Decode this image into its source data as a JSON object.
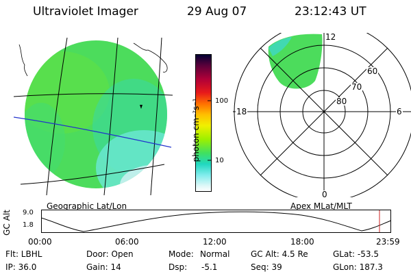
{
  "header": {
    "title": "Ultraviolet Imager",
    "date": "29 Aug 07",
    "time": "23:12:43 UT"
  },
  "colorbar": {
    "unit_label": "photon cm⁻²s⁻¹",
    "ticks": [
      "100",
      "10"
    ],
    "colors": [
      "#000033",
      "#5a003a",
      "#9a0038",
      "#d0002a",
      "#f03010",
      "#ff8000",
      "#ffc000",
      "#f0f000",
      "#a8f000",
      "#40e060",
      "#20d8c0",
      "#60e8e8",
      "#d0f4f4",
      "#ffffff"
    ]
  },
  "geo_panel": {
    "label": "Geographic Lat/Lon"
  },
  "polar_panel": {
    "label": "Apex MLat/MLT",
    "mlt_labels": {
      "top": "12",
      "left": "18",
      "right": "6",
      "bottom": "0"
    },
    "lat_labels": [
      "60",
      "70",
      "80"
    ]
  },
  "altitude_plot": {
    "ylabel": "GC Alt",
    "ymax": "9.0",
    "ymin": "1.8",
    "x_ticks": [
      "00:00",
      "06:00",
      "12:00",
      "18:00",
      "23:59"
    ],
    "marker_color": "#cc2222"
  },
  "footer": {
    "row1": {
      "flt": "Flt: LBHL",
      "door": "Door: Open",
      "mode_label": "Mode:",
      "mode_value": "Normal",
      "gcalt": "GC Alt: 4.5 Re",
      "glat": "GLat: -53.5"
    },
    "row2": {
      "ip": "IP: 36.0",
      "gain": "Gain: 14",
      "dsp_label": "Dsp:",
      "dsp_value": "-5.1",
      "seq": "Seq: 39",
      "glon": "GLon: 187.3"
    }
  }
}
